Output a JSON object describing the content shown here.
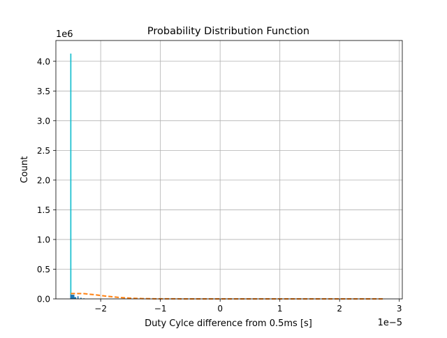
{
  "chart_data": {
    "type": "bar",
    "title": "Probability Distribution Function",
    "xlabel": "Duty Cylce difference from 0.5ms [s]",
    "ylabel": "Count",
    "x_offset_label": "1e−5",
    "y_offset_label": "1e6",
    "xlim": [
      -2.75,
      3.05
    ],
    "ylim": [
      0,
      4.35
    ],
    "x_ticks": [
      -2,
      -1,
      0,
      1,
      2,
      3
    ],
    "x_tick_labels": [
      "−2",
      "−1",
      "0",
      "1",
      "2",
      "3"
    ],
    "y_ticks": [
      0,
      0.5,
      1,
      1.5,
      2,
      2.5,
      3,
      3.5,
      4
    ],
    "y_tick_labels": [
      "0.0",
      "0.5",
      "1.0",
      "1.5",
      "2.0",
      "2.5",
      "3.0",
      "3.5",
      "4.0"
    ],
    "grid": true,
    "series": [
      {
        "type": "histogram",
        "color": "#17becf",
        "bars": [
          {
            "x0": -2.51,
            "x1": -2.49,
            "value": 4.13
          }
        ]
      },
      {
        "type": "histogram",
        "color": "#1f77b4",
        "bars": [
          {
            "x0": -2.51,
            "x1": -2.44,
            "value": 0.07
          },
          {
            "x0": -2.44,
            "x1": -2.41,
            "value": 0.03
          },
          {
            "x0": -2.39,
            "x1": -2.37,
            "value": 0.045
          },
          {
            "x0": -2.34,
            "x1": -2.32,
            "value": 0.02
          },
          {
            "x0": -2.29,
            "x1": -2.27,
            "value": 0.01
          }
        ]
      },
      {
        "type": "line",
        "style": "dashed",
        "color": "#ff7f0e",
        "x": [
          -2.5,
          -2.3,
          -2.1,
          -1.9,
          -1.7,
          -1.5,
          -1.3,
          -1.1,
          -0.9,
          -0.5,
          0,
          1,
          2,
          2.75
        ],
        "y": [
          0.09,
          0.09,
          0.07,
          0.045,
          0.025,
          0.012,
          0.005,
          0.002,
          0.001,
          0.0005,
          0.0002,
          0.0001,
          0.0001,
          0.0001
        ]
      }
    ]
  }
}
